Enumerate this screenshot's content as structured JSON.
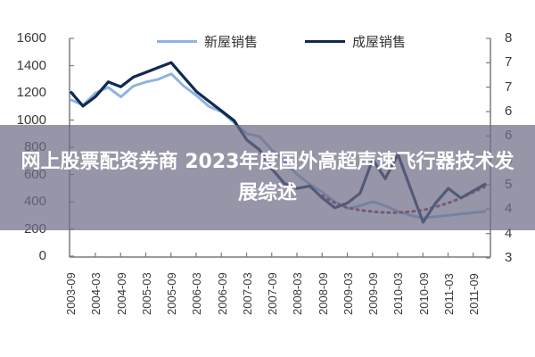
{
  "overlay": {
    "title": "网上股票配资券商 2023年度国外高超声速飞行器技术发展综述"
  },
  "chart_data": {
    "type": "line",
    "title": "",
    "xlabel": "",
    "ylabel": "",
    "ylabel_right": "",
    "grid": false,
    "legend_position": "top",
    "legend": [
      "新屋销售",
      "成屋销售"
    ],
    "x_tick_labels": [
      "2003-09",
      "2004-03",
      "2004-09",
      "2005-03",
      "2005-09",
      "2006-03",
      "2006-09",
      "2007-03",
      "2007-09",
      "2008-03",
      "2008-09",
      "2009-03",
      "2009-09",
      "2010-03",
      "2010-09",
      "2011-03",
      "2011-09"
    ],
    "y_left_ticks": [
      0,
      200,
      400,
      600,
      800,
      1000,
      1200,
      1400,
      1600
    ],
    "y_left_range": [
      0,
      1600
    ],
    "y_right_tick_labels": [
      "3",
      "4",
      "4",
      "5",
      "5",
      "6",
      "6",
      "7",
      "7",
      "8"
    ],
    "y_right_range": [
      3.5,
      8
    ],
    "x": [
      "2003-09",
      "2003-12",
      "2004-03",
      "2004-06",
      "2004-09",
      "2004-12",
      "2005-03",
      "2005-06",
      "2005-09",
      "2005-12",
      "2006-03",
      "2006-06",
      "2006-09",
      "2006-12",
      "2007-03",
      "2007-06",
      "2007-09",
      "2007-12",
      "2008-03",
      "2008-06",
      "2008-09",
      "2008-12",
      "2009-03",
      "2009-06",
      "2009-09",
      "2009-12",
      "2010-03",
      "2010-06",
      "2010-09",
      "2010-12",
      "2011-03",
      "2011-06",
      "2011-09",
      "2011-12"
    ],
    "series": [
      {
        "name": "新屋销售",
        "axis": "left",
        "color": "#8fb4e0",
        "values": [
          1150,
          1110,
          1200,
          1240,
          1170,
          1250,
          1280,
          1300,
          1340,
          1250,
          1180,
          1100,
          1060,
          980,
          900,
          880,
          780,
          700,
          600,
          530,
          470,
          400,
          350,
          370,
          400,
          370,
          330,
          300,
          280,
          290,
          300,
          310,
          320,
          330
        ]
      },
      {
        "name": "成屋销售",
        "axis": "right",
        "color": "#0f2a52",
        "values": [
          6.9,
          6.6,
          6.8,
          7.1,
          7.0,
          7.2,
          7.3,
          7.4,
          7.5,
          7.2,
          6.9,
          6.7,
          6.5,
          6.3,
          5.9,
          5.7,
          5.3,
          5.0,
          4.9,
          4.95,
          4.7,
          4.5,
          4.6,
          4.8,
          5.5,
          5.1,
          5.6,
          4.9,
          4.2,
          4.6,
          4.9,
          4.7,
          4.85,
          5.0
        ]
      },
      {
        "name": "趋势线",
        "axis": "right",
        "style": "dotted",
        "color": "#8b2a4a",
        "values": [
          null,
          null,
          null,
          null,
          null,
          null,
          null,
          null,
          null,
          null,
          null,
          null,
          null,
          null,
          null,
          null,
          null,
          null,
          null,
          null,
          4.75,
          4.6,
          4.5,
          4.45,
          4.42,
          4.4,
          4.4,
          4.42,
          4.45,
          4.52,
          4.6,
          4.7,
          4.82,
          4.95
        ]
      }
    ]
  }
}
